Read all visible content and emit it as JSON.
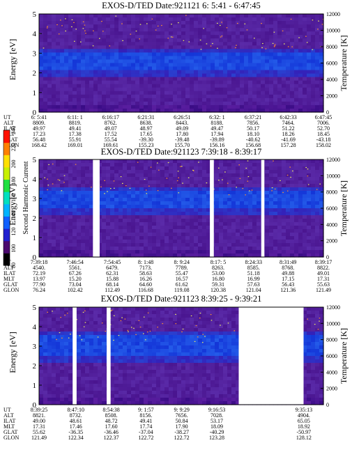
{
  "chart_data": [
    {
      "type": "heatmap",
      "title": "EXOS-D/TED   Date:921121   6: 5:41 - 6:47:45",
      "ylabel": "Energy [eV]",
      "y2label": "Temperature [K]",
      "ylim": [
        0,
        5
      ],
      "y2lim": [
        0,
        12000
      ],
      "yticks": [
        "0",
        "1",
        "2",
        "3",
        "4",
        "5"
      ],
      "y2ticks": [
        "0",
        "2000",
        "4000",
        "6000",
        "8000",
        "10000",
        "12000"
      ],
      "ut_range": [
        "6:05:41",
        "6:47:45"
      ],
      "energy_band_eV": [
        2.15,
        2.95
      ],
      "data_gaps": [],
      "rows": [
        {
          "label": "UT",
          "values": [
            "6: 5:41",
            "6:11: 1",
            "6:16:17",
            "6:21:31",
            "6:26:51",
            "6:32: 1",
            "6:37:21",
            "6:42:33",
            "6:47:45"
          ]
        },
        {
          "label": "ALT",
          "values": [
            "8809.",
            "8819.",
            "8762.",
            "8638.",
            "8443.",
            "8188.",
            "7856.",
            "7464.",
            "7006."
          ]
        },
        {
          "label": "ILAT",
          "values": [
            "49.97",
            "49.41",
            "49.07",
            "48.97",
            "49.09",
            "49.47",
            "50.17",
            "51.22",
            "52.70"
          ]
        },
        {
          "label": "MLT",
          "values": [
            "17.23",
            "17.38",
            "17.52",
            "17.65",
            "17.80",
            "17.94",
            "18.10",
            "18.26",
            "18.45"
          ]
        },
        {
          "label": "GLAT",
          "values": [
            "56.48",
            "55.91",
            "55.54",
            "-39.30",
            "-39.48",
            "-39.89",
            "-40.62",
            "-41.69",
            "-43.18"
          ]
        },
        {
          "label": "GLON",
          "values": [
            "168.42",
            "169.01",
            "169.61",
            "155.23",
            "155.70",
            "156.16",
            "156.68",
            "157.28",
            "158.02"
          ]
        }
      ]
    },
    {
      "type": "heatmap",
      "title": "EXOS-D/TED   Date:921123   7:39:18 - 8:39:17",
      "ylabel": "Energy [eV]",
      "y2label": "Temperature [K]",
      "ylim": [
        0,
        5
      ],
      "y2lim": [
        0,
        12000
      ],
      "yticks": [
        "0",
        "1",
        "2",
        "3",
        "4",
        "5"
      ],
      "y2ticks": [
        "0",
        "2000",
        "4000",
        "6000",
        "8000",
        "10000",
        "12000"
      ],
      "ut_range": [
        "7:39:18",
        "8:39:17"
      ],
      "energy_band_eV": [
        2.55,
        3.35
      ],
      "data_gaps": [
        [
          "7:50:40",
          "7:52:05"
        ],
        [
          "8:15:20",
          "8:16:10"
        ],
        [
          "8:26:10",
          "8:26:50"
        ]
      ],
      "rows": [
        {
          "label": "UT",
          "values": [
            "7:39:18",
            "7:46:54",
            "7:54:45",
            "8: 1:48",
            "8: 9:24",
            "8:17: 5",
            "8:24:33",
            "8:31:49",
            "8:39:17"
          ]
        },
        {
          "label": "ALT",
          "values": [
            "4540.",
            "5561.",
            "6479.",
            "7173.",
            "7789.",
            "8263.",
            "8585.",
            "8768.",
            "8822."
          ]
        },
        {
          "label": "ILAT",
          "values": [
            "72.19",
            "67.26",
            "62.31",
            "58.63",
            "55.47",
            "53.00",
            "51.18",
            "49.88",
            "49.01"
          ]
        },
        {
          "label": "MLT",
          "values": [
            "13.97",
            "15.20",
            "15.88",
            "16.26",
            "16.57",
            "16.80",
            "16.99",
            "17.15",
            "17.31"
          ]
        },
        {
          "label": "GLAT",
          "values": [
            "77.90",
            "73.04",
            "68.14",
            "64.60",
            "61.62",
            "59.31",
            "57.63",
            "56.43",
            "55.63"
          ]
        },
        {
          "label": "GLON",
          "values": [
            "76.24",
            "102.42",
            "112.49",
            "116.68",
            "119.08",
            "120.38",
            "121.04",
            "121.36",
            "121.49"
          ]
        }
      ]
    },
    {
      "type": "heatmap",
      "title": "EXOS-D/TED   Date:921123   8:39:25 - 9:39:21",
      "ylabel": "Energy [eV]",
      "y2label": "Temperature [K]",
      "ylim": [
        0,
        5
      ],
      "y2lim": [
        0,
        12000
      ],
      "yticks": [
        "0",
        "1",
        "2",
        "3",
        "4",
        "5"
      ],
      "y2ticks": [
        "0",
        "2000",
        "4000",
        "6000",
        "8000",
        "10000",
        "12000"
      ],
      "ut_range": [
        "8:39:25",
        "9:39:21"
      ],
      "energy_band_eV": [
        2.5,
        3.5
      ],
      "data_gaps": [
        [
          "8:46:30",
          "8:47:20"
        ],
        [
          "8:53:40",
          "8:54:30"
        ],
        [
          "9:21:30",
          "9:35:10"
        ]
      ],
      "rows": [
        {
          "label": "UT",
          "values": [
            "8:39:25",
            "8:47:10",
            "8:54:38",
            "9: 1:57",
            "9: 9:29",
            "9:16:53",
            "9:35:13"
          ]
        },
        {
          "label": "ALT",
          "values": [
            "8821.",
            "8732.",
            "8508.",
            "8156.",
            "7656.",
            "7028.",
            "4904."
          ]
        },
        {
          "label": "ILAT",
          "values": [
            "49.00",
            "48.61",
            "48.72",
            "49.41",
            "50.84",
            "53.17",
            "65.05"
          ]
        },
        {
          "label": "MLT",
          "values": [
            "17.31",
            "17.46",
            "17.60",
            "17.74",
            "17.90",
            "18.09",
            "18.92"
          ]
        },
        {
          "label": "GLAT",
          "values": [
            "55.62",
            "-36.35",
            "-36.46",
            "-37.04",
            "-38.27",
            "-40.29",
            "-50.97"
          ]
        },
        {
          "label": "GLON",
          "values": [
            "121.49",
            "122.34",
            "122.37",
            "122.72",
            "122.72",
            "123.28",
            "128.12"
          ]
        }
      ]
    }
  ],
  "colorbar": {
    "label": "Second Harmonic Current",
    "ticks": [
      "80",
      "100",
      "120",
      "140",
      "160",
      "180",
      "200",
      "220",
      "240"
    ],
    "range": [
      80,
      240
    ],
    "colors": [
      "#000000",
      "#4b0a6e",
      "#2020d0",
      "#1060ff",
      "#00b4ff",
      "#00e0c0",
      "#20e040",
      "#c8f000",
      "#ffe000",
      "#ff8000",
      "#ff1000"
    ]
  }
}
